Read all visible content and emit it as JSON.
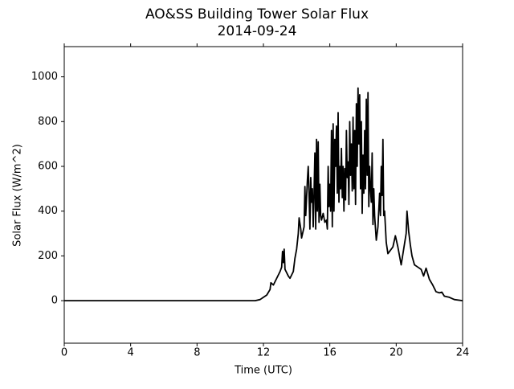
{
  "chart_data": {
    "type": "line",
    "title": "AO&SS Building Tower Solar Flux",
    "subtitle": "2014-09-24",
    "x_label": "Time (UTC)",
    "y_label": "Solar Flux (W/m^2)",
    "xlim": [
      0,
      24
    ],
    "xticks": [
      0,
      4,
      8,
      12,
      16,
      20,
      24
    ],
    "ylim": [
      -190,
      1135
    ],
    "yticks": [
      0,
      200,
      400,
      600,
      800,
      1000
    ],
    "x": [
      0,
      11.5,
      11.8,
      12.0,
      12.2,
      12.4,
      12.45,
      12.6,
      12.8,
      13.0,
      13.1,
      13.15,
      13.2,
      13.25,
      13.3,
      13.5,
      13.6,
      13.8,
      13.9,
      14.0,
      14.1,
      14.15,
      14.25,
      14.3,
      14.45,
      14.5,
      14.55,
      14.65,
      14.7,
      14.75,
      14.8,
      14.85,
      14.9,
      14.95,
      15.0,
      15.05,
      15.1,
      15.15,
      15.2,
      15.25,
      15.3,
      15.35,
      15.4,
      15.45,
      15.5,
      15.6,
      15.7,
      15.8,
      15.85,
      15.9,
      15.95,
      16.0,
      16.05,
      16.1,
      16.15,
      16.2,
      16.25,
      16.3,
      16.35,
      16.4,
      16.45,
      16.5,
      16.55,
      16.6,
      16.65,
      16.7,
      16.75,
      16.8,
      16.85,
      16.9,
      16.95,
      17.0,
      17.05,
      17.1,
      17.15,
      17.2,
      17.25,
      17.3,
      17.35,
      17.4,
      17.45,
      17.5,
      17.55,
      17.6,
      17.65,
      17.7,
      17.75,
      17.8,
      17.85,
      17.9,
      17.95,
      18.0,
      18.05,
      18.1,
      18.15,
      18.2,
      18.25,
      18.3,
      18.35,
      18.4,
      18.45,
      18.5,
      18.55,
      18.6,
      18.65,
      18.7,
      18.8,
      18.9,
      19.0,
      19.05,
      19.1,
      19.15,
      19.2,
      19.25,
      19.3,
      19.4,
      19.5,
      19.6,
      19.8,
      19.95,
      20.1,
      20.3,
      20.45,
      20.6,
      20.65,
      20.75,
      20.85,
      20.95,
      21.1,
      21.3,
      21.5,
      21.65,
      21.8,
      22.0,
      22.2,
      22.4,
      22.6,
      22.75,
      22.9,
      23.2,
      23.5,
      24
    ],
    "series": [
      {
        "name": "Solar Flux",
        "color": "#000000",
        "values": [
          0,
          0,
          5,
          15,
          25,
          50,
          80,
          70,
          100,
          130,
          150,
          220,
          170,
          230,
          140,
          110,
          100,
          130,
          190,
          230,
          300,
          370,
          320,
          280,
          330,
          510,
          380,
          540,
          600,
          480,
          320,
          550,
          440,
          500,
          330,
          480,
          660,
          320,
          720,
          400,
          710,
          350,
          520,
          380,
          360,
          390,
          350,
          360,
          320,
          600,
          420,
          520,
          400,
          760,
          330,
          790,
          400,
          720,
          600,
          780,
          480,
          840,
          440,
          600,
          500,
          680,
          460,
          600,
          400,
          590,
          450,
          760,
          550,
          620,
          430,
          800,
          560,
          700,
          490,
          820,
          500,
          760,
          430,
          880,
          600,
          950,
          700,
          920,
          500,
          800,
          390,
          650,
          480,
          760,
          500,
          900,
          560,
          930,
          420,
          600,
          500,
          440,
          660,
          340,
          500,
          380,
          270,
          330,
          480,
          380,
          600,
          470,
          720,
          380,
          400,
          260,
          210,
          220,
          240,
          290,
          240,
          160,
          230,
          300,
          400,
          310,
          250,
          200,
          160,
          150,
          140,
          110,
          145,
          95,
          70,
          40,
          35,
          38,
          20,
          15,
          5,
          0
        ]
      }
    ]
  }
}
